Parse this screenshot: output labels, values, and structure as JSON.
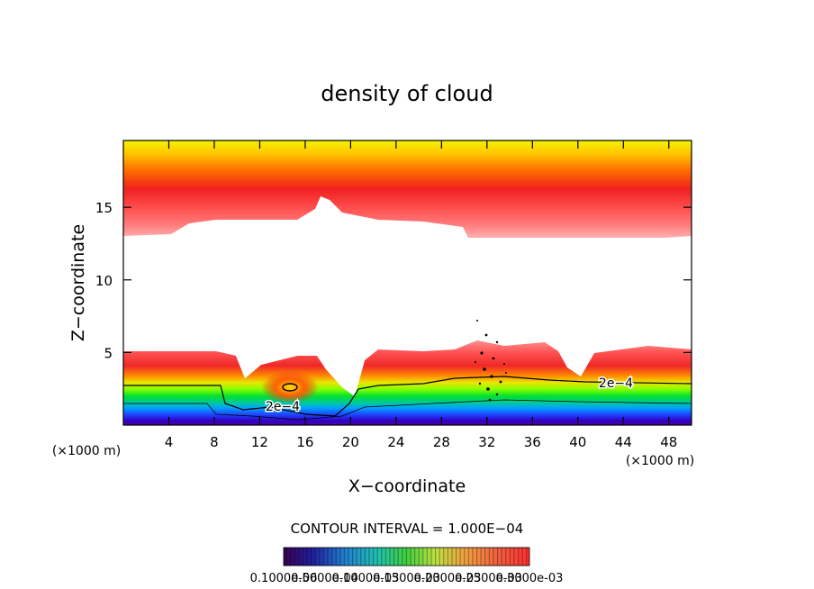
{
  "chart_data": {
    "type": "heatmap",
    "title": "density of cloud",
    "xlabel": "X−coordinate",
    "ylabel": "Z−coordinate",
    "x_unit": "(×1000 m)",
    "xlim": [
      0,
      50
    ],
    "ylim": [
      0,
      19.6
    ],
    "x_ticks": [
      "4",
      "8",
      "12",
      "16",
      "20",
      "24",
      "28",
      "32",
      "36",
      "40",
      "44",
      "48"
    ],
    "y_ticks": [
      "5",
      "10",
      "15"
    ],
    "contour_labels": [
      "2e−4",
      "2e−4"
    ],
    "contour_interval_text": "CONTOUR INTERVAL = 1.000E−04",
    "colorbar_labels": [
      "0.1000e-06",
      "0.5000e-04",
      "0.1000e-03",
      "0.1500e-03",
      "0.2000e-03",
      "0.2500e-03",
      "0.3000e-03"
    ],
    "colorbar_range": [
      1e-07,
      0.0003
    ],
    "grid": false
  }
}
